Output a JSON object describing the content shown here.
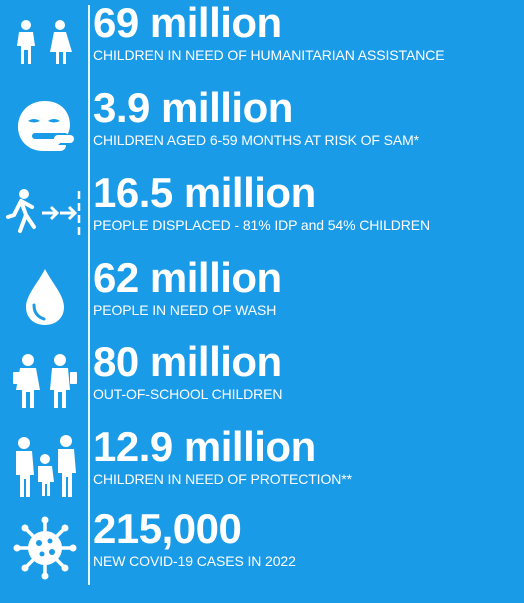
{
  "stats": [
    {
      "value": "69 million",
      "label": "CHILDREN IN NEED OF HUMANITARIAN ASSISTANCE",
      "icon": "children-icon"
    },
    {
      "value": "3.9 million",
      "label": "CHILDREN AGED 6-59 MONTHS AT RISK OF SAM*",
      "icon": "baby-face-icon"
    },
    {
      "value": "16.5 million",
      "label": "PEOPLE DISPLACED - 81% IDP and 54% CHILDREN",
      "icon": "displaced-person-icon"
    },
    {
      "value": "62 million",
      "label": "PEOPLE IN NEED OF WASH",
      "icon": "water-drop-icon"
    },
    {
      "value": "80 million",
      "label": "OUT-OF-SCHOOL CHILDREN",
      "icon": "schoolchildren-icon"
    },
    {
      "value": "12.9 million",
      "label": "CHILDREN  IN NEED OF PROTECTION**",
      "icon": "family-icon"
    },
    {
      "value": "215,000",
      "label": "NEW COVID-19 CASES IN 2022",
      "icon": "virus-icon"
    }
  ],
  "colors": {
    "background": "#1A9BE8",
    "foreground": "#FFFFFF"
  }
}
